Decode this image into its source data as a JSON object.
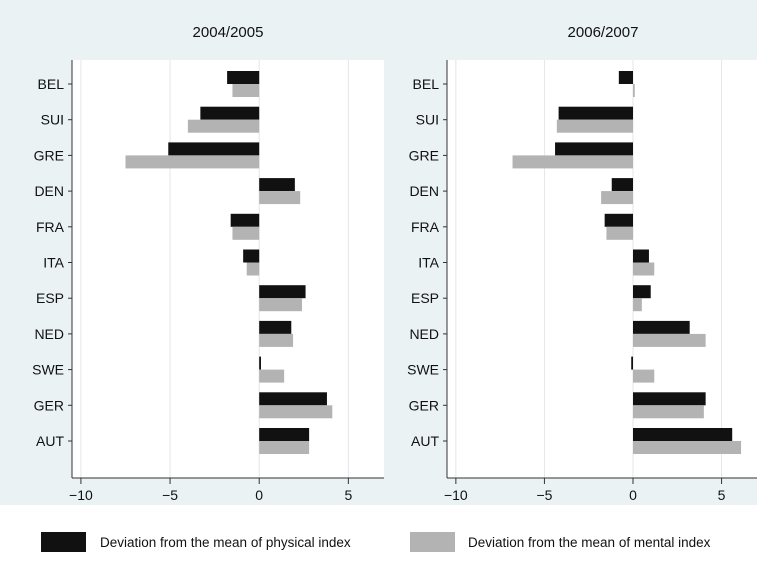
{
  "legend": {
    "position": "bottom",
    "items": [
      {
        "label": "Deviation from the mean of physical index",
        "color": "#111111"
      },
      {
        "label": "Deviation from the mean of mental index",
        "color": "#b3b3b3"
      }
    ]
  },
  "chart_data": [
    {
      "type": "bar",
      "orientation": "horizontal",
      "title": "2004/2005",
      "categories": [
        "BEL",
        "SUI",
        "GRE",
        "DEN",
        "FRA",
        "ITA",
        "ESP",
        "NED",
        "SWE",
        "GER",
        "AUT"
      ],
      "series": [
        {
          "name": "Deviation from the mean of physical index",
          "color": "#111111",
          "values": [
            -1.8,
            -3.3,
            -5.1,
            2.0,
            -1.6,
            -0.9,
            2.6,
            1.8,
            0.1,
            3.8,
            2.8
          ]
        },
        {
          "name": "Deviation from the mean of mental index",
          "color": "#b3b3b3",
          "values": [
            -1.5,
            -4.0,
            -7.5,
            2.3,
            -1.5,
            -0.7,
            2.4,
            1.9,
            1.4,
            4.1,
            2.8
          ]
        }
      ],
      "xlim": [
        -10.5,
        7
      ],
      "xticks": [
        -10,
        -5,
        0,
        5
      ],
      "xgrid": true
    },
    {
      "type": "bar",
      "orientation": "horizontal",
      "title": "2006/2007",
      "categories": [
        "BEL",
        "SUI",
        "GRE",
        "DEN",
        "FRA",
        "ITA",
        "ESP",
        "NED",
        "SWE",
        "GER",
        "AUT"
      ],
      "series": [
        {
          "name": "Deviation from the mean of physical index",
          "color": "#111111",
          "values": [
            -0.8,
            -4.2,
            -4.4,
            -1.2,
            -1.6,
            0.9,
            1.0,
            3.2,
            -0.1,
            4.1,
            5.6
          ]
        },
        {
          "name": "Deviation from the mean of mental index",
          "color": "#b3b3b3",
          "values": [
            0.1,
            -4.3,
            -6.8,
            -1.8,
            -1.5,
            1.2,
            0.5,
            4.1,
            1.2,
            4.0,
            6.1
          ]
        }
      ],
      "xlim": [
        -10.5,
        7
      ],
      "xticks": [
        -10,
        -5,
        0,
        5
      ],
      "xgrid": true
    }
  ]
}
